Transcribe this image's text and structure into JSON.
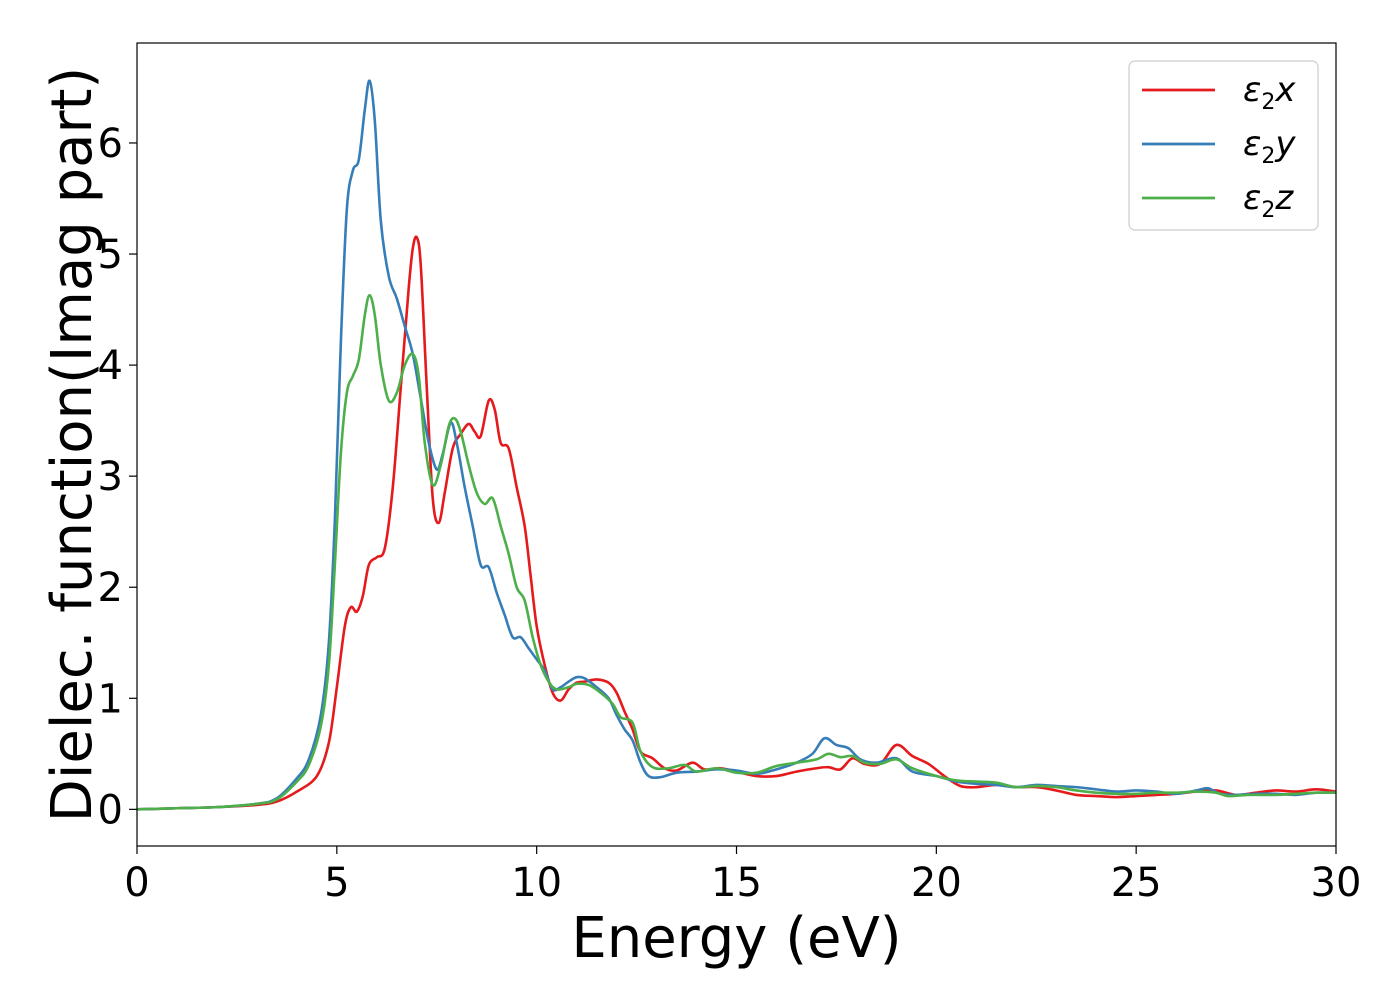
{
  "chart_data": {
    "type": "line",
    "title": "",
    "xlabel": "Energy (eV)",
    "ylabel": "Dielec. function(Imag part)",
    "xlim": [
      0,
      30
    ],
    "ylim": [
      -0.33,
      6.9
    ],
    "xticks": [
      0,
      5,
      10,
      15,
      20,
      25,
      30
    ],
    "xtick_labels": [
      "0",
      "5",
      "10",
      "15",
      "20",
      "25",
      "30"
    ],
    "yticks": [
      0,
      1,
      2,
      3,
      4,
      5,
      6
    ],
    "ytick_labels": [
      "0",
      "1",
      "2",
      "3",
      "4",
      "5",
      "6"
    ],
    "grid": false,
    "legend_position": "top-right",
    "series": [
      {
        "name": "ε2x",
        "legend": {
          "base": "ε",
          "sub": "2",
          "suffix": "x"
        },
        "color": "#e41a1c",
        "points": [
          [
            0,
            0
          ],
          [
            1,
            0.01
          ],
          [
            2,
            0.02
          ],
          [
            3,
            0.04
          ],
          [
            3.5,
            0.07
          ],
          [
            4,
            0.16
          ],
          [
            4.5,
            0.3
          ],
          [
            4.8,
            0.6
          ],
          [
            5,
            1.1
          ],
          [
            5.2,
            1.65
          ],
          [
            5.35,
            1.82
          ],
          [
            5.5,
            1.78
          ],
          [
            5.65,
            1.92
          ],
          [
            5.8,
            2.2
          ],
          [
            6,
            2.27
          ],
          [
            6.2,
            2.35
          ],
          [
            6.4,
            2.9
          ],
          [
            6.6,
            3.8
          ],
          [
            6.8,
            4.7
          ],
          [
            6.9,
            5.05
          ],
          [
            7.0,
            5.15
          ],
          [
            7.1,
            4.9
          ],
          [
            7.25,
            3.8
          ],
          [
            7.4,
            2.8
          ],
          [
            7.55,
            2.58
          ],
          [
            7.7,
            2.85
          ],
          [
            7.9,
            3.25
          ],
          [
            8.1,
            3.38
          ],
          [
            8.3,
            3.47
          ],
          [
            8.45,
            3.4
          ],
          [
            8.6,
            3.36
          ],
          [
            8.8,
            3.68
          ],
          [
            8.95,
            3.6
          ],
          [
            9.1,
            3.3
          ],
          [
            9.3,
            3.25
          ],
          [
            9.5,
            2.9
          ],
          [
            9.7,
            2.55
          ],
          [
            9.85,
            2.1
          ],
          [
            10,
            1.65
          ],
          [
            10.2,
            1.3
          ],
          [
            10.4,
            1.05
          ],
          [
            10.6,
            0.98
          ],
          [
            10.8,
            1.08
          ],
          [
            11,
            1.14
          ],
          [
            11.2,
            1.15
          ],
          [
            11.5,
            1.17
          ],
          [
            11.8,
            1.14
          ],
          [
            12,
            1.05
          ],
          [
            12.2,
            0.88
          ],
          [
            12.4,
            0.72
          ],
          [
            12.6,
            0.52
          ],
          [
            12.9,
            0.46
          ],
          [
            13.2,
            0.37
          ],
          [
            13.5,
            0.35
          ],
          [
            13.9,
            0.42
          ],
          [
            14.2,
            0.36
          ],
          [
            14.6,
            0.37
          ],
          [
            15,
            0.34
          ],
          [
            15.5,
            0.3
          ],
          [
            16,
            0.3
          ],
          [
            16.5,
            0.34
          ],
          [
            17,
            0.37
          ],
          [
            17.3,
            0.38
          ],
          [
            17.6,
            0.36
          ],
          [
            17.9,
            0.46
          ],
          [
            18.2,
            0.41
          ],
          [
            18.6,
            0.41
          ],
          [
            19.0,
            0.58
          ],
          [
            19.4,
            0.48
          ],
          [
            19.8,
            0.41
          ],
          [
            20.2,
            0.3
          ],
          [
            20.6,
            0.21
          ],
          [
            21,
            0.2
          ],
          [
            21.5,
            0.22
          ],
          [
            22,
            0.2
          ],
          [
            22.5,
            0.2
          ],
          [
            23,
            0.17
          ],
          [
            23.5,
            0.13
          ],
          [
            24,
            0.12
          ],
          [
            24.5,
            0.11
          ],
          [
            25,
            0.12
          ],
          [
            25.5,
            0.13
          ],
          [
            26,
            0.14
          ],
          [
            26.5,
            0.16
          ],
          [
            27,
            0.17
          ],
          [
            27.5,
            0.13
          ],
          [
            28,
            0.15
          ],
          [
            28.5,
            0.17
          ],
          [
            29,
            0.16
          ],
          [
            29.5,
            0.18
          ],
          [
            30,
            0.16
          ]
        ]
      },
      {
        "name": "ε2y",
        "legend": {
          "base": "ε",
          "sub": "2",
          "suffix": "y"
        },
        "color": "#377eb8",
        "points": [
          [
            0,
            0
          ],
          [
            1,
            0.01
          ],
          [
            2,
            0.02
          ],
          [
            3,
            0.05
          ],
          [
            3.5,
            0.1
          ],
          [
            4,
            0.28
          ],
          [
            4.3,
            0.45
          ],
          [
            4.6,
            0.85
          ],
          [
            4.8,
            1.5
          ],
          [
            4.95,
            2.6
          ],
          [
            5.1,
            4.2
          ],
          [
            5.25,
            5.4
          ],
          [
            5.4,
            5.75
          ],
          [
            5.55,
            5.85
          ],
          [
            5.7,
            6.3
          ],
          [
            5.82,
            6.56
          ],
          [
            5.95,
            6.2
          ],
          [
            6.1,
            5.3
          ],
          [
            6.3,
            4.8
          ],
          [
            6.5,
            4.6
          ],
          [
            6.7,
            4.35
          ],
          [
            6.9,
            4.1
          ],
          [
            7.1,
            3.7
          ],
          [
            7.3,
            3.3
          ],
          [
            7.5,
            3.06
          ],
          [
            7.65,
            3.2
          ],
          [
            7.85,
            3.48
          ],
          [
            8.0,
            3.3
          ],
          [
            8.2,
            2.9
          ],
          [
            8.4,
            2.55
          ],
          [
            8.6,
            2.2
          ],
          [
            8.8,
            2.18
          ],
          [
            9.0,
            1.95
          ],
          [
            9.2,
            1.75
          ],
          [
            9.4,
            1.55
          ],
          [
            9.6,
            1.55
          ],
          [
            9.8,
            1.45
          ],
          [
            10,
            1.35
          ],
          [
            10.2,
            1.25
          ],
          [
            10.4,
            1.08
          ],
          [
            10.6,
            1.1
          ],
          [
            10.8,
            1.15
          ],
          [
            11,
            1.19
          ],
          [
            11.2,
            1.18
          ],
          [
            11.5,
            1.1
          ],
          [
            11.8,
            1.0
          ],
          [
            12,
            0.85
          ],
          [
            12.2,
            0.72
          ],
          [
            12.4,
            0.62
          ],
          [
            12.6,
            0.42
          ],
          [
            12.8,
            0.3
          ],
          [
            13.1,
            0.29
          ],
          [
            13.5,
            0.33
          ],
          [
            14,
            0.34
          ],
          [
            14.5,
            0.36
          ],
          [
            15,
            0.35
          ],
          [
            15.5,
            0.32
          ],
          [
            16,
            0.36
          ],
          [
            16.5,
            0.42
          ],
          [
            16.9,
            0.5
          ],
          [
            17.2,
            0.64
          ],
          [
            17.5,
            0.58
          ],
          [
            17.8,
            0.55
          ],
          [
            18.1,
            0.45
          ],
          [
            18.5,
            0.42
          ],
          [
            19,
            0.46
          ],
          [
            19.4,
            0.34
          ],
          [
            20,
            0.3
          ],
          [
            20.5,
            0.25
          ],
          [
            21,
            0.23
          ],
          [
            21.5,
            0.22
          ],
          [
            22,
            0.2
          ],
          [
            22.5,
            0.22
          ],
          [
            23,
            0.21
          ],
          [
            23.5,
            0.2
          ],
          [
            24,
            0.18
          ],
          [
            24.5,
            0.16
          ],
          [
            25,
            0.17
          ],
          [
            25.5,
            0.16
          ],
          [
            26,
            0.14
          ],
          [
            26.5,
            0.17
          ],
          [
            26.8,
            0.19
          ],
          [
            27.1,
            0.14
          ],
          [
            27.5,
            0.13
          ],
          [
            28,
            0.14
          ],
          [
            28.5,
            0.14
          ],
          [
            29,
            0.13
          ],
          [
            29.5,
            0.15
          ],
          [
            30,
            0.15
          ]
        ]
      },
      {
        "name": "ε2z",
        "legend": {
          "base": "ε",
          "sub": "2",
          "suffix": "z"
        },
        "color": "#4daf4a",
        "points": [
          [
            0,
            0
          ],
          [
            1,
            0.01
          ],
          [
            2,
            0.02
          ],
          [
            3,
            0.05
          ],
          [
            3.5,
            0.09
          ],
          [
            4,
            0.25
          ],
          [
            4.3,
            0.4
          ],
          [
            4.6,
            0.75
          ],
          [
            4.8,
            1.3
          ],
          [
            4.95,
            2.2
          ],
          [
            5.1,
            3.2
          ],
          [
            5.25,
            3.75
          ],
          [
            5.4,
            3.9
          ],
          [
            5.55,
            4.05
          ],
          [
            5.7,
            4.45
          ],
          [
            5.82,
            4.63
          ],
          [
            5.95,
            4.45
          ],
          [
            6.1,
            4.0
          ],
          [
            6.3,
            3.68
          ],
          [
            6.5,
            3.75
          ],
          [
            6.7,
            4.0
          ],
          [
            6.9,
            4.1
          ],
          [
            7.05,
            3.9
          ],
          [
            7.2,
            3.3
          ],
          [
            7.4,
            2.92
          ],
          [
            7.6,
            3.1
          ],
          [
            7.8,
            3.45
          ],
          [
            7.95,
            3.52
          ],
          [
            8.1,
            3.4
          ],
          [
            8.3,
            3.1
          ],
          [
            8.5,
            2.85
          ],
          [
            8.7,
            2.75
          ],
          [
            8.9,
            2.8
          ],
          [
            9.1,
            2.55
          ],
          [
            9.3,
            2.3
          ],
          [
            9.5,
            2.0
          ],
          [
            9.7,
            1.88
          ],
          [
            9.9,
            1.55
          ],
          [
            10.1,
            1.3
          ],
          [
            10.3,
            1.15
          ],
          [
            10.5,
            1.08
          ],
          [
            10.8,
            1.1
          ],
          [
            11,
            1.13
          ],
          [
            11.3,
            1.12
          ],
          [
            11.6,
            1.05
          ],
          [
            11.9,
            0.95
          ],
          [
            12.1,
            0.83
          ],
          [
            12.4,
            0.78
          ],
          [
            12.6,
            0.52
          ],
          [
            12.9,
            0.38
          ],
          [
            13.3,
            0.37
          ],
          [
            13.7,
            0.4
          ],
          [
            14,
            0.34
          ],
          [
            14.5,
            0.37
          ],
          [
            15,
            0.33
          ],
          [
            15.5,
            0.33
          ],
          [
            16,
            0.39
          ],
          [
            16.5,
            0.42
          ],
          [
            17,
            0.45
          ],
          [
            17.3,
            0.5
          ],
          [
            17.6,
            0.47
          ],
          [
            17.9,
            0.48
          ],
          [
            18.2,
            0.42
          ],
          [
            18.6,
            0.41
          ],
          [
            19,
            0.45
          ],
          [
            19.4,
            0.37
          ],
          [
            20,
            0.3
          ],
          [
            20.5,
            0.26
          ],
          [
            21,
            0.25
          ],
          [
            21.5,
            0.24
          ],
          [
            22,
            0.2
          ],
          [
            22.5,
            0.21
          ],
          [
            23,
            0.2
          ],
          [
            23.5,
            0.17
          ],
          [
            24,
            0.15
          ],
          [
            24.5,
            0.14
          ],
          [
            25,
            0.14
          ],
          [
            25.5,
            0.15
          ],
          [
            26,
            0.15
          ],
          [
            26.5,
            0.16
          ],
          [
            27,
            0.15
          ],
          [
            27.3,
            0.12
          ],
          [
            27.8,
            0.13
          ],
          [
            28.5,
            0.13
          ],
          [
            29,
            0.14
          ],
          [
            29.5,
            0.15
          ],
          [
            30,
            0.15
          ]
        ]
      }
    ]
  }
}
